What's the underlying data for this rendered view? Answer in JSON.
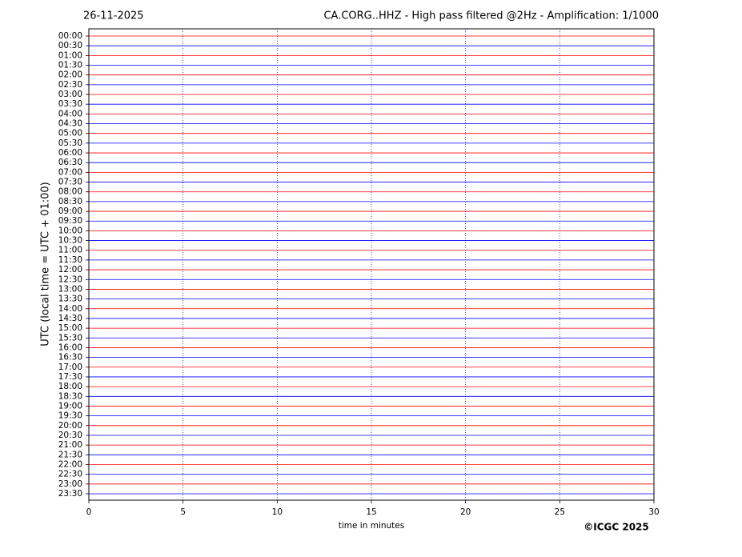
{
  "chart_data": {
    "type": "helicorder",
    "date": "26-11-2025",
    "title": "CA.CORG..HHZ - High pass filtered @2Hz - Amplification: 1/1000",
    "ylabel": "UTC (local time = UTC + 01:00)",
    "xlabel": "time in minutes",
    "credit": "©ICGC 2025",
    "categories": [
      "00:00",
      "00:30",
      "01:00",
      "01:30",
      "02:00",
      "02:30",
      "03:00",
      "03:30",
      "04:00",
      "04:30",
      "05:00",
      "05:30",
      "06:00",
      "06:30",
      "07:00",
      "07:30",
      "08:00",
      "08:30",
      "09:00",
      "09:30",
      "10:00",
      "10:30",
      "11:00",
      "11:30",
      "12:00",
      "12:30",
      "13:00",
      "13:30",
      "14:00",
      "14:30",
      "15:00",
      "15:30",
      "16:00",
      "16:30",
      "17:00",
      "17:30",
      "18:00",
      "18:30",
      "19:00",
      "19:30",
      "20:00",
      "20:30",
      "21:00",
      "21:30",
      "22:00",
      "22:30",
      "23:00",
      "23:30"
    ],
    "trace_colors": [
      "#ff0000",
      "#0000ff"
    ],
    "xlim": [
      0,
      30
    ],
    "xticks": [
      0,
      5,
      10,
      15,
      20,
      25,
      30
    ],
    "grid": true
  }
}
